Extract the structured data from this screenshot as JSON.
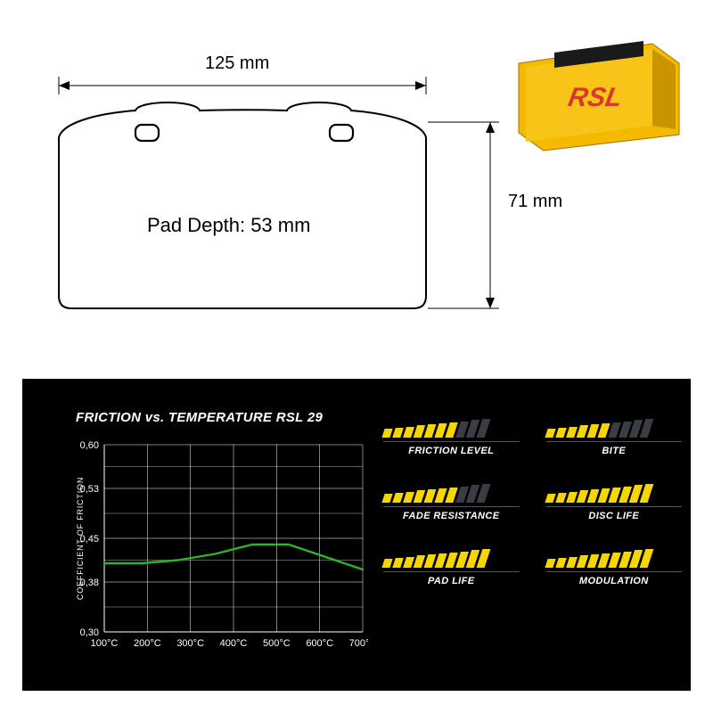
{
  "dimensions": {
    "width_label": "125 mm",
    "height_label": "71 mm",
    "depth_label": "Pad Depth: 53 mm"
  },
  "product": {
    "brand": "RSL",
    "brand_color": "#d83a2a",
    "pad_color": "#f5b900",
    "plate_color": "#1a1a1a"
  },
  "panel": {
    "chart": {
      "title": "FRICTION vs. TEMPERATURE RSL 29",
      "ylabel": "COEFFICIENT OF FRICTION",
      "y_ticks": [
        "0,60",
        "0,53",
        "0,45",
        "0,38",
        "0,30"
      ],
      "y_values": [
        0.6,
        0.53,
        0.45,
        0.38,
        0.3
      ],
      "x_ticks": [
        "100°C",
        "200°C",
        "300°C",
        "400°C",
        "500°C",
        "600°C",
        "700°C"
      ],
      "line_color": "#2ab52a",
      "grid_color": "#ffffff",
      "bg_color": "#000000",
      "series_y": [
        0.41,
        0.41,
        0.415,
        0.425,
        0.44,
        0.44,
        0.42,
        0.4
      ]
    },
    "ratings": {
      "max": 10,
      "fill_color": "#f5d600",
      "empty_color": "#3a3e44",
      "items": [
        {
          "label": "FRICTION LEVEL",
          "value": 7
        },
        {
          "label": "BITE",
          "value": 6
        },
        {
          "label": "FADE RESISTANCE",
          "value": 7
        },
        {
          "label": "DISC LIFE",
          "value": 10
        },
        {
          "label": "PAD LIFE",
          "value": 10
        },
        {
          "label": "MODULATION",
          "value": 10
        }
      ]
    }
  }
}
